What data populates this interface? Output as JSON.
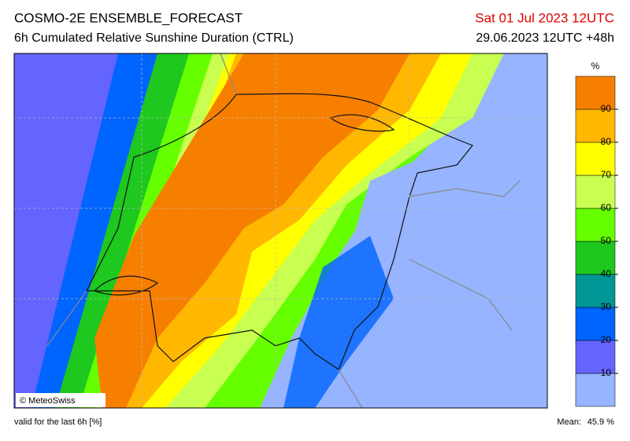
{
  "header": {
    "title": "COSMO-2E ENSEMBLE_FORECAST",
    "subtitle": "6h Cumulated Relative Sunshine Duration (CTRL)",
    "valid_time": "Sat 01 Jul 2023 12UTC",
    "run": "29.06.2023 12UTC +48h"
  },
  "map": {
    "credit": "© MeteoSwiss"
  },
  "colorbar": {
    "unit": "%",
    "ticks": [
      10,
      20,
      30,
      40,
      50,
      60,
      70,
      80,
      90
    ],
    "colors": [
      "#96b4ff",
      "#6464ff",
      "#0064ff",
      "#009696",
      "#1ec81e",
      "#66ff00",
      "#c8ff50",
      "#ffff00",
      "#ffb700",
      "#f77f00"
    ]
  },
  "footer": {
    "note": "valid for the last 6h [%]",
    "mean_label": "Mean:",
    "mean_value": "45.9 %"
  }
}
